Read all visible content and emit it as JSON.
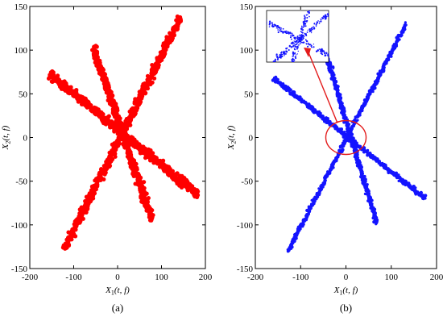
{
  "chart_data": [
    {
      "type": "scatter",
      "panel_label": "(a)",
      "xlabel": {
        "main": "X",
        "sub": "1",
        "args": "(t, f)"
      },
      "ylabel": {
        "main": "X",
        "sub": "2",
        "args": "(t, f)"
      },
      "xlim": [
        -200,
        200
      ],
      "ylim": [
        -150,
        150
      ],
      "xticks": [
        -200,
        -100,
        0,
        100,
        200
      ],
      "yticks": [
        -150,
        -100,
        -50,
        0,
        50,
        100,
        150
      ],
      "grid": false,
      "color": "#ff0000",
      "series": [
        {
          "segment": [
            [
              -122,
              -128
            ],
            [
              143,
              137
            ]
          ],
          "width": 2.6
        },
        {
          "segment": [
            [
              -155,
              72
            ],
            [
              183,
              -65
            ]
          ],
          "width": 2.4
        },
        {
          "segment": [
            [
              -55,
              103
            ],
            [
              78,
              -94
            ]
          ],
          "width": 2.8
        }
      ]
    },
    {
      "type": "scatter",
      "panel_label": "(b)",
      "xlabel": {
        "main": "X",
        "sub": "1",
        "args": "(t, f)"
      },
      "ylabel": {
        "main": "X",
        "sub": "2",
        "args": "(t, f)"
      },
      "xlim": [
        -200,
        200
      ],
      "ylim": [
        -150,
        150
      ],
      "xticks": [
        -200,
        -100,
        0,
        100,
        200
      ],
      "yticks": [
        -150,
        -100,
        -50,
        0,
        50,
        100,
        150
      ],
      "grid": false,
      "color": "#1414ff",
      "annotation": "zoomed inset of the intersection region (circled)",
      "series": [
        {
          "segment": [
            [
              -128,
              -130
            ],
            [
              133,
              130
            ]
          ],
          "width": 1.3
        },
        {
          "segment": [
            [
              -160,
              68
            ],
            [
              175,
              -70
            ]
          ],
          "width": 1.3
        },
        {
          "segment": [
            [
              -45,
              98
            ],
            [
              68,
              -98
            ]
          ],
          "width": 1.8
        }
      ]
    }
  ]
}
